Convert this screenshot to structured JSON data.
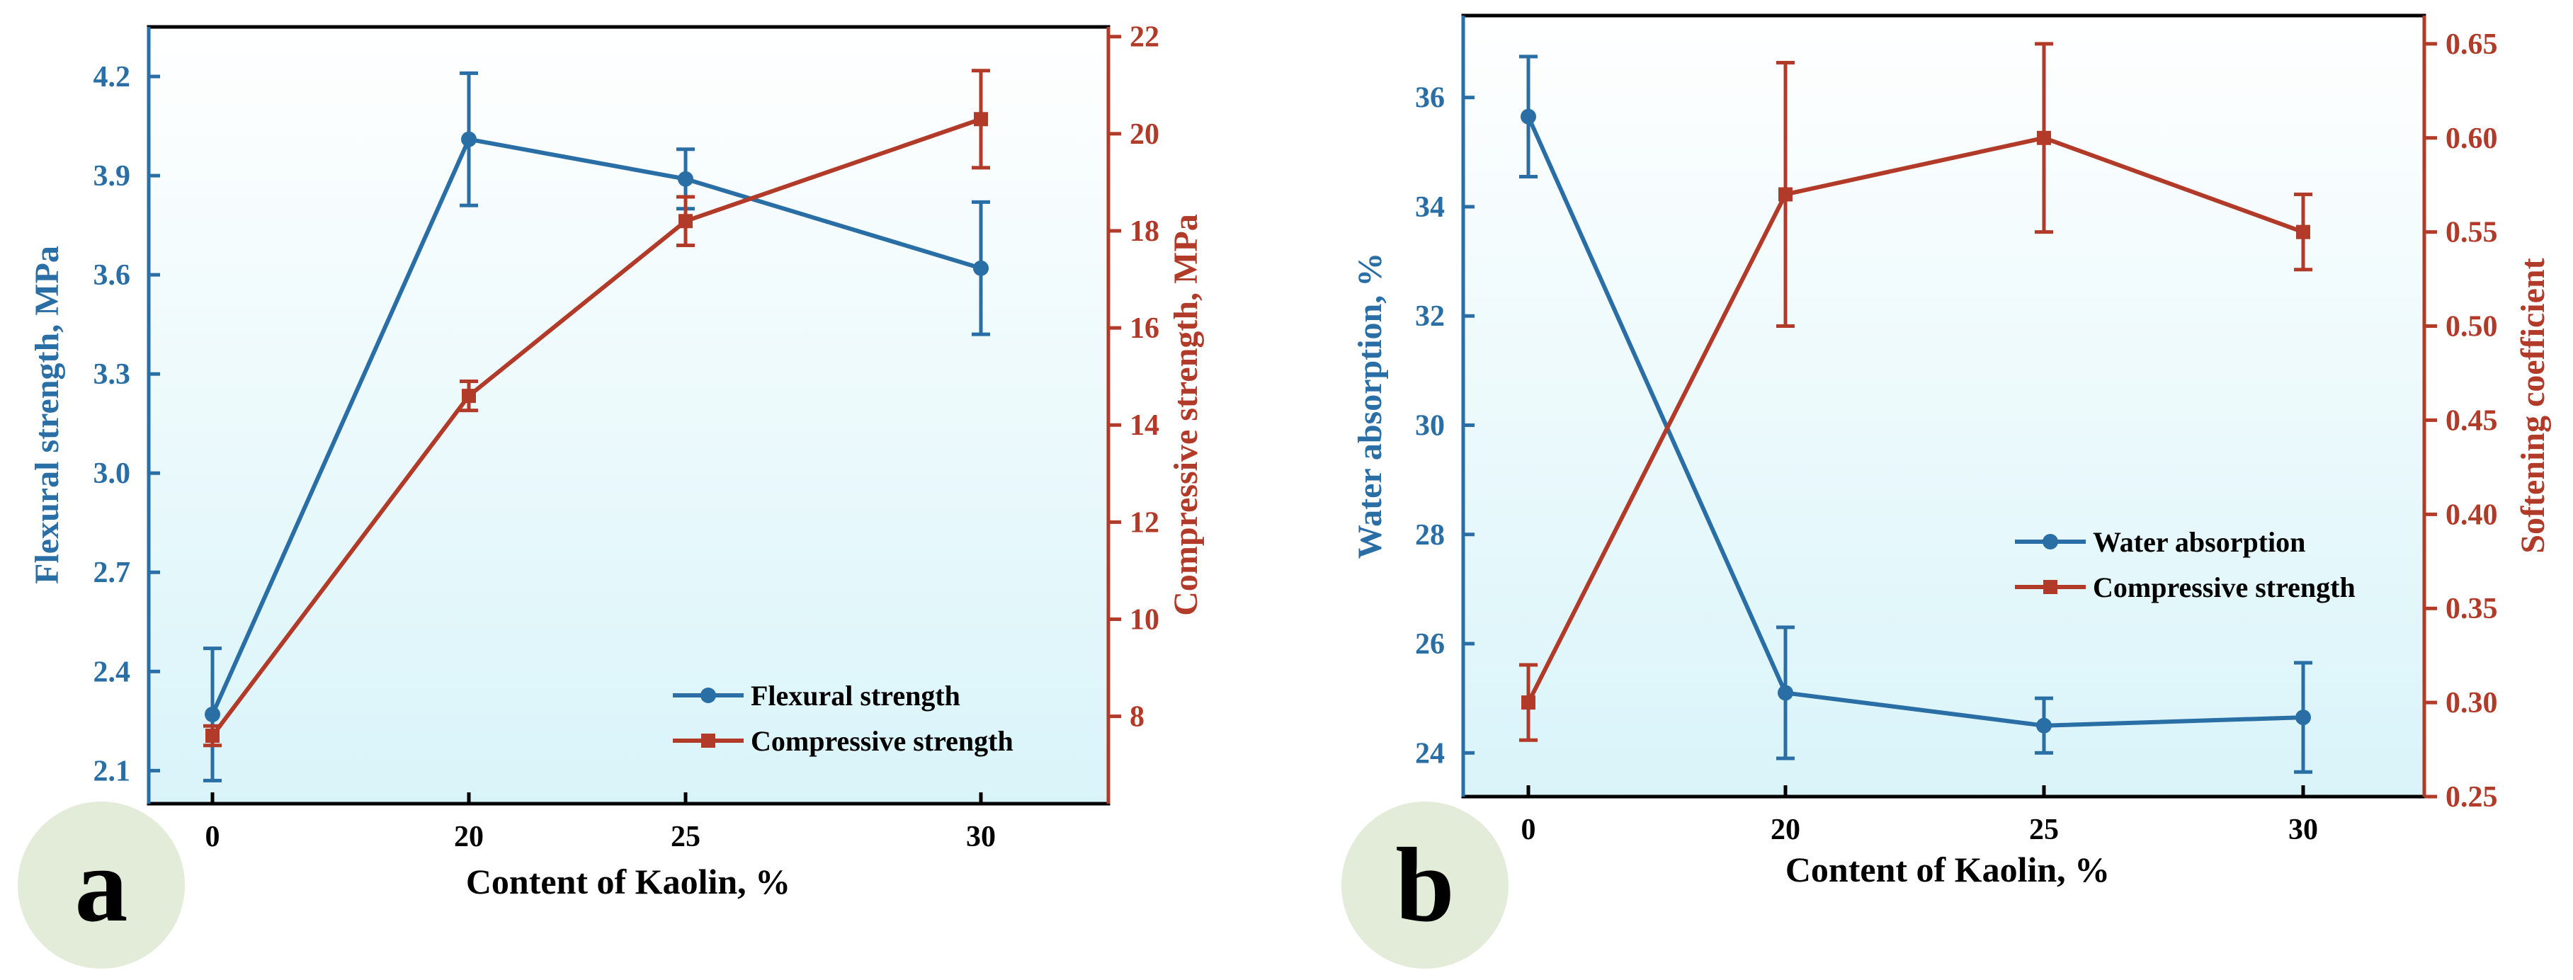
{
  "colors": {
    "blue": "#2a6ea6",
    "red": "#b13a28",
    "axis_black": "#000000",
    "bg_top": "#ffffff",
    "bg_bottom": "#d9f4f9",
    "badge": "#e3ecd9"
  },
  "chart_data": [
    {
      "panel_label": "a",
      "type": "line",
      "xlabel": "Content of Kaolin, %",
      "categories": [
        "0",
        "20",
        "25",
        "30"
      ],
      "left_axis": {
        "label": "Flexural strength, MPa",
        "ylim": [
          2.0,
          4.35
        ],
        "ticks": [
          2.1,
          2.4,
          2.7,
          3.0,
          3.3,
          3.6,
          3.9,
          4.2
        ],
        "tick_labels": [
          "2.1",
          "2.4",
          "2.7",
          "3.0",
          "3.3",
          "3.6",
          "3.9",
          "4.2"
        ]
      },
      "right_axis": {
        "label": "Compressive strength, MPa",
        "ylim": [
          6.2,
          22.2
        ],
        "ticks": [
          8,
          10,
          12,
          14,
          16,
          18,
          20,
          22
        ],
        "tick_labels": [
          "8",
          "10",
          "12",
          "14",
          "16",
          "18",
          "20",
          "22"
        ]
      },
      "series": [
        {
          "name": "Flexural strength",
          "axis": "left",
          "color": "blue",
          "marker": "circle",
          "values": [
            2.27,
            4.01,
            3.89,
            3.62
          ],
          "errors": [
            0.2,
            0.2,
            0.09,
            0.2
          ]
        },
        {
          "name": "Compressive strength",
          "axis": "right",
          "color": "red",
          "marker": "square",
          "values": [
            7.6,
            14.6,
            18.2,
            20.3
          ],
          "errors": [
            0.2,
            0.3,
            0.5,
            1.0
          ]
        }
      ],
      "legend": "bottom-right"
    },
    {
      "panel_label": "b",
      "type": "line",
      "xlabel": "Content of Kaolin, %",
      "categories": [
        "0",
        "20",
        "25",
        "30"
      ],
      "left_axis": {
        "label": "Water absorption, %",
        "ylim": [
          23.2,
          37.5
        ],
        "ticks": [
          24,
          26,
          28,
          30,
          32,
          34,
          36
        ],
        "tick_labels": [
          "24",
          "26",
          "28",
          "30",
          "32",
          "34",
          "36"
        ]
      },
      "right_axis": {
        "label": "Softening coefficient",
        "ylim": [
          0.25,
          0.665
        ],
        "ticks": [
          0.25,
          0.3,
          0.35,
          0.4,
          0.45,
          0.5,
          0.55,
          0.6,
          0.65
        ],
        "tick_labels": [
          "0.25",
          "0.30",
          "0.35",
          "0.40",
          "0.45",
          "0.50",
          "0.55",
          "0.60",
          "0.65"
        ]
      },
      "series": [
        {
          "name": "Water absorption",
          "axis": "left",
          "color": "blue",
          "marker": "circle",
          "values": [
            35.65,
            25.1,
            24.5,
            24.65
          ],
          "errors": [
            1.1,
            1.2,
            0.5,
            1.0
          ]
        },
        {
          "name": "Compressive strength",
          "axis": "right",
          "color": "red",
          "marker": "square",
          "values": [
            0.3,
            0.57,
            0.6,
            0.55
          ],
          "errors": [
            0.02,
            0.07,
            0.05,
            0.02
          ]
        }
      ],
      "legend": "center-right"
    }
  ]
}
